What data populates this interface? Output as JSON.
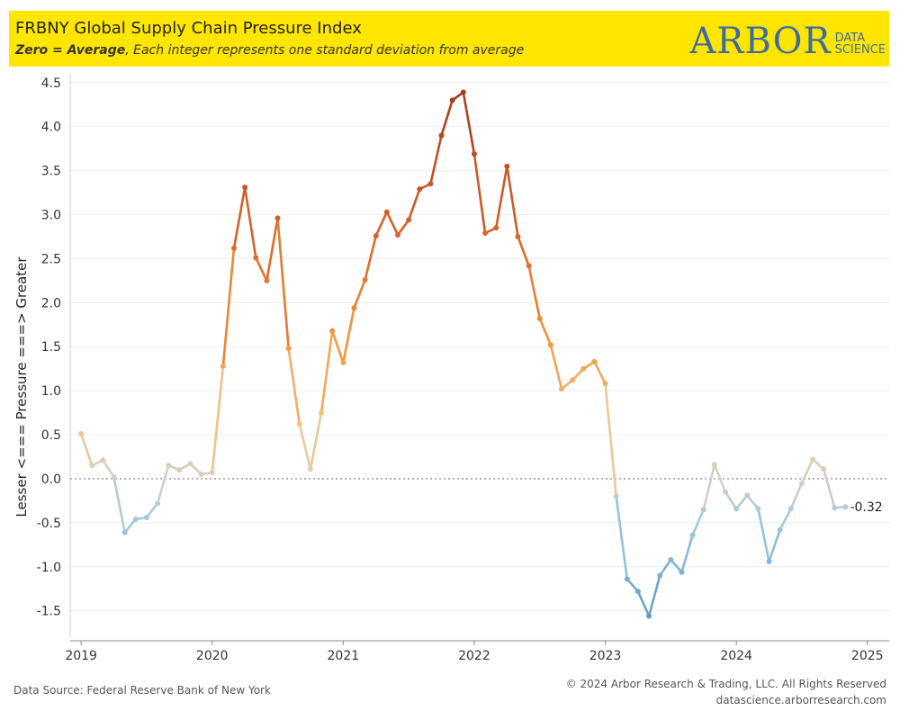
{
  "header": {
    "title": "FRBNY Global Supply Chain Pressure Index",
    "subtitle_bold": "Zero = Average",
    "subtitle_rest": ", Each integer represents one standard deviation from average",
    "logo_main": "ARBOR",
    "logo_sub_1": "DATA",
    "logo_sub_2": "SCIENCE",
    "background_color": "#ffe600",
    "logo_color": "#3f6c9e"
  },
  "footer": {
    "source": "Data Source: Federal Reserve Bank of New York",
    "copyright": "© 2024 Arbor Research & Trading, LLC. All Rights Reserved",
    "website": "datascience.arborresearch.com"
  },
  "chart_data": {
    "type": "line",
    "title": "FRBNY Global Supply Chain Pressure Index",
    "ylabel": "Lesser <=== Pressure ===> Greater",
    "xlabel": "",
    "ylim": [
      -1.8,
      4.6
    ],
    "xlim": [
      "2018-12",
      "2025-03"
    ],
    "x_ticks": [
      "2019",
      "2020",
      "2021",
      "2022",
      "2023",
      "2024",
      "2025"
    ],
    "y_ticks": [
      "4.5",
      "4.0",
      "3.5",
      "3.0",
      "2.5",
      "2.0",
      "1.5",
      "1.0",
      "0.5",
      "0.0",
      "-0.5",
      "-1.0",
      "-1.5"
    ],
    "y_tick_values": [
      4.5,
      4.0,
      3.5,
      3.0,
      2.5,
      2.0,
      1.5,
      1.0,
      0.5,
      0.0,
      -0.5,
      -1.0,
      -1.5
    ],
    "reference_line": 0,
    "grid": "horizontal",
    "end_label": "-0.32",
    "color_scale": {
      "low": "#6fa8cc",
      "mid": "#d8d3c4",
      "high": "#a63c1e"
    },
    "dates": [
      "2019-01",
      "2019-02",
      "2019-03",
      "2019-04",
      "2019-05",
      "2019-06",
      "2019-07",
      "2019-08",
      "2019-09",
      "2019-10",
      "2019-11",
      "2019-12",
      "2020-01",
      "2020-02",
      "2020-03",
      "2020-04",
      "2020-05",
      "2020-06",
      "2020-07",
      "2020-08",
      "2020-09",
      "2020-10",
      "2020-11",
      "2020-12",
      "2021-01",
      "2021-02",
      "2021-03",
      "2021-04",
      "2021-05",
      "2021-06",
      "2021-07",
      "2021-08",
      "2021-09",
      "2021-10",
      "2021-11",
      "2021-12",
      "2022-01",
      "2022-02",
      "2022-03",
      "2022-04",
      "2022-05",
      "2022-06",
      "2022-07",
      "2022-08",
      "2022-09",
      "2022-10",
      "2022-11",
      "2022-12",
      "2023-01",
      "2023-02",
      "2023-03",
      "2023-04",
      "2023-05",
      "2023-06",
      "2023-07",
      "2023-08",
      "2023-09",
      "2023-10",
      "2023-11",
      "2023-12",
      "2024-01",
      "2024-02",
      "2024-03",
      "2024-04",
      "2024-05",
      "2024-06",
      "2024-07",
      "2024-08",
      "2024-09",
      "2024-10",
      "2024-11"
    ],
    "values": [
      0.51,
      0.15,
      0.21,
      0.02,
      -0.61,
      -0.46,
      -0.44,
      -0.28,
      0.15,
      0.1,
      0.17,
      0.05,
      0.07,
      1.28,
      2.62,
      3.31,
      2.51,
      2.25,
      2.96,
      1.48,
      0.62,
      0.11,
      0.75,
      1.68,
      1.32,
      1.94,
      2.26,
      2.76,
      3.03,
      2.77,
      2.94,
      3.29,
      3.35,
      3.9,
      4.3,
      4.39,
      3.69,
      2.79,
      2.85,
      3.55,
      2.75,
      2.42,
      1.82,
      1.52,
      1.02,
      1.12,
      1.25,
      1.33,
      1.08,
      -0.2,
      -1.14,
      -1.28,
      -1.56,
      -1.1,
      -0.92,
      -1.06,
      -0.64,
      -0.35,
      0.16,
      -0.15,
      -0.34,
      -0.19,
      -0.34,
      -0.94,
      -0.58,
      -0.34,
      -0.05,
      0.22,
      0.11,
      -0.33,
      -0.32
    ]
  }
}
